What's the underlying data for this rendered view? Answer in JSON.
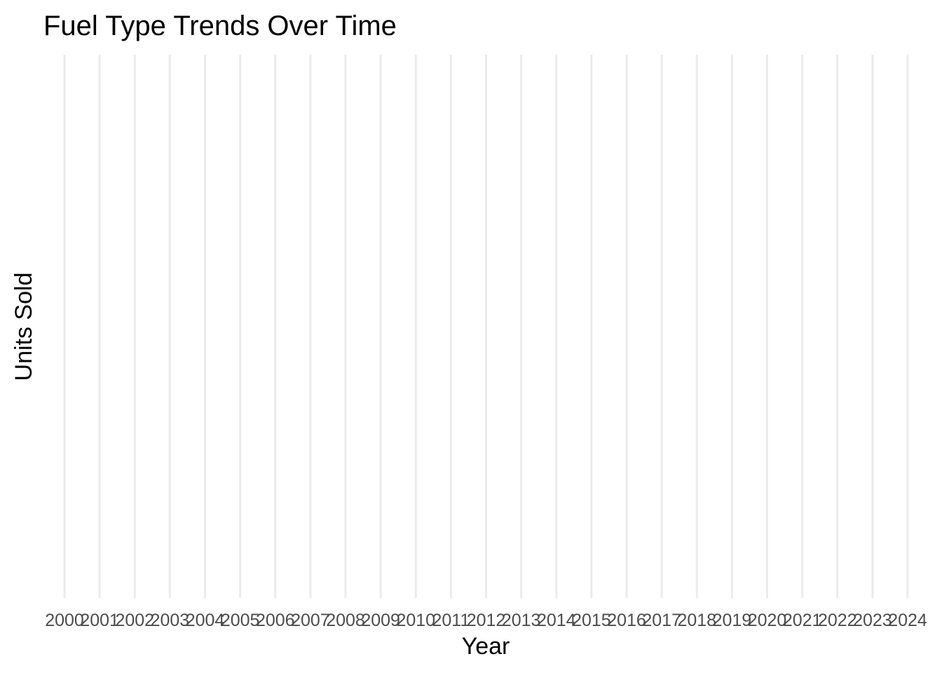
{
  "chart_data": {
    "type": "line",
    "title": "Fuel Type Trends Over Time",
    "xlabel": "Year",
    "ylabel": "Units Sold",
    "x_ticks": [
      "2000",
      "2001",
      "2002",
      "2003",
      "2004",
      "2005",
      "2006",
      "2007",
      "2008",
      "2009",
      "2010",
      "2011",
      "2012",
      "2013",
      "2014",
      "2015",
      "2016",
      "2017",
      "2018",
      "2019",
      "2020",
      "2021",
      "2022",
      "2023",
      "2024"
    ],
    "series": [],
    "grid": "vertical",
    "legend": "none"
  },
  "colors": {
    "grid": "#ebebeb",
    "tick_text": "#4d4d4d",
    "text": "#000000",
    "background": "#ffffff"
  }
}
